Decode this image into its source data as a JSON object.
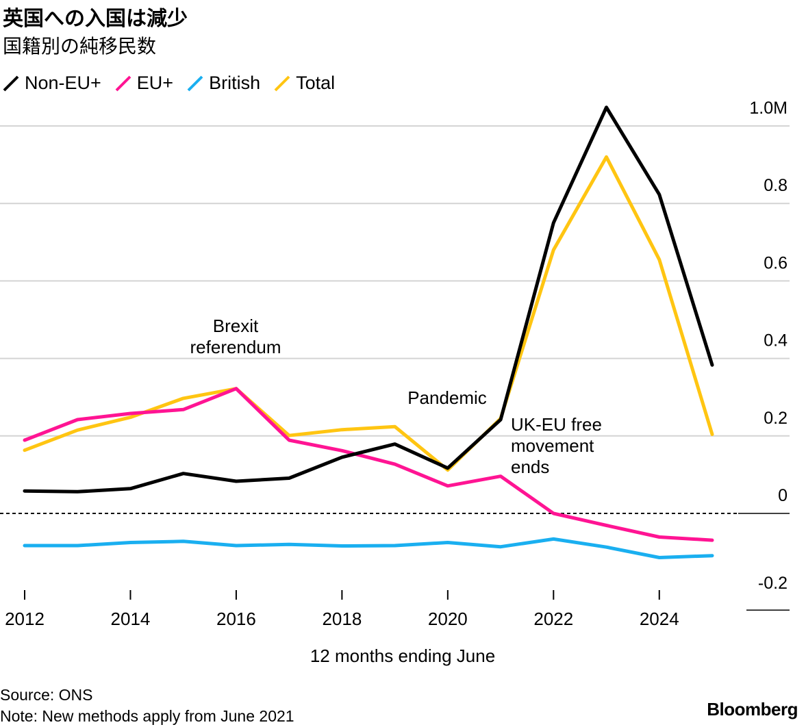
{
  "title": "英国への入国は減少",
  "subtitle": "国籍別の純移民数",
  "legend": [
    {
      "name": "Non-EU+",
      "color": "#000000"
    },
    {
      "name": "EU+",
      "color": "#ff1493"
    },
    {
      "name": "British",
      "color": "#1aaff0"
    },
    {
      "name": "Total",
      "color": "#ffc512"
    }
  ],
  "source": "Source: ONS",
  "note": "Note: New methods apply from June 2021",
  "brand": "Bloomberg",
  "chart_data": {
    "type": "line",
    "title": "英国への入国は減少",
    "subtitle": "国籍別の純移民数",
    "xlabel": "12 months ending June",
    "ylabel": "",
    "x": [
      2012,
      2013,
      2014,
      2015,
      2016,
      2017,
      2018,
      2019,
      2020,
      2021,
      2022,
      2023,
      2024,
      2025
    ],
    "xlim": [
      2012,
      2025
    ],
    "ylim": [
      -0.2,
      1.0
    ],
    "x_ticks": [
      2012,
      2014,
      2016,
      2018,
      2020,
      2022,
      2024
    ],
    "x_tick_labels": [
      "2012",
      "2014",
      "2016",
      "2018",
      "2020",
      "2022",
      "2024"
    ],
    "y_ticks": [
      -0.2,
      0,
      0.2,
      0.4,
      0.6,
      0.8,
      1.0
    ],
    "y_tick_labels": [
      "-0.2",
      "0",
      "0.2",
      "0.4",
      "0.6",
      "0.8",
      "1.0M"
    ],
    "zero_line": "dashed",
    "series": [
      {
        "name": "Total",
        "color": "#ffc512",
        "values": [
          0.163,
          0.215,
          0.248,
          0.297,
          0.322,
          0.201,
          0.216,
          0.224,
          0.112,
          0.245,
          0.68,
          0.92,
          0.655,
          0.204
        ]
      },
      {
        "name": "EU+",
        "color": "#ff1493",
        "values": [
          0.189,
          0.242,
          0.258,
          0.268,
          0.322,
          0.189,
          0.162,
          0.127,
          0.071,
          0.096,
          0.0,
          -0.031,
          -0.061,
          -0.069
        ]
      },
      {
        "name": "British",
        "color": "#1aaff0",
        "values": [
          -0.083,
          -0.083,
          -0.075,
          -0.072,
          -0.083,
          -0.08,
          -0.084,
          -0.083,
          -0.075,
          -0.086,
          -0.066,
          -0.087,
          -0.114,
          -0.109
        ]
      },
      {
        "name": "Non-EU+",
        "color": "#000000",
        "values": [
          0.058,
          0.056,
          0.064,
          0.103,
          0.083,
          0.091,
          0.145,
          0.179,
          0.117,
          0.242,
          0.75,
          1.048,
          0.823,
          0.383
        ]
      }
    ],
    "annotations": [
      {
        "text": [
          "Brexit",
          "referendum"
        ],
        "x": 2016
      },
      {
        "text": [
          "Pandemic"
        ],
        "x": 2020
      },
      {
        "text": [
          "UK-EU free",
          "movement",
          "ends"
        ],
        "x": 2021
      }
    ]
  }
}
